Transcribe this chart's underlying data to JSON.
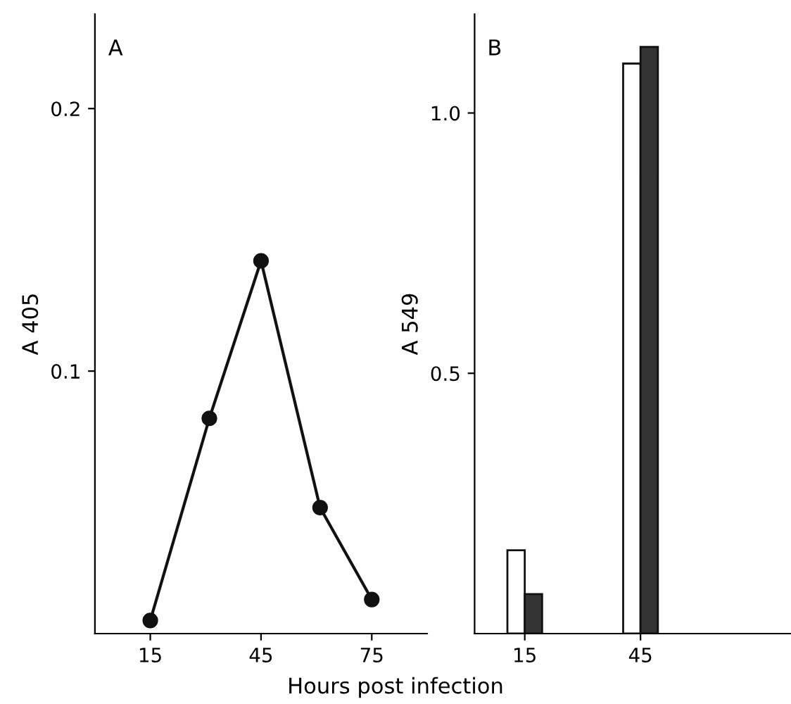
{
  "chart_data": [
    {
      "type": "line",
      "title": "A",
      "ylabel": "A 405",
      "xlabel": "Hours post infection",
      "x": [
        15,
        31,
        45,
        61,
        75
      ],
      "series": [
        {
          "color": "#111111",
          "values": [
            0.005,
            0.082,
            0.142,
            0.048,
            0.013
          ]
        }
      ],
      "marker": "circle",
      "line_style": "solid",
      "xlim": [
        0,
        90
      ],
      "xticks": [
        15,
        45,
        75
      ],
      "ylim": [
        0,
        0.236
      ],
      "yticks": [
        0.1,
        0.2
      ],
      "grid": false,
      "legend": false
    },
    {
      "type": "bar",
      "title": "B",
      "ylabel": "A 549",
      "x": [
        15,
        45
      ],
      "series": [
        {
          "color": "#ffffff",
          "values": [
            0.16,
            1.095
          ]
        },
        {
          "color": "#333333",
          "values": [
            0.076,
            1.127
          ]
        }
      ],
      "xlim": [
        2,
        84
      ],
      "xticks": [
        15,
        45
      ],
      "ylim": [
        0,
        1.19
      ],
      "yticks": [
        0.5,
        {
          "value": 1,
          "label": "1.0"
        }
      ],
      "grid": false,
      "legend": false
    }
  ]
}
